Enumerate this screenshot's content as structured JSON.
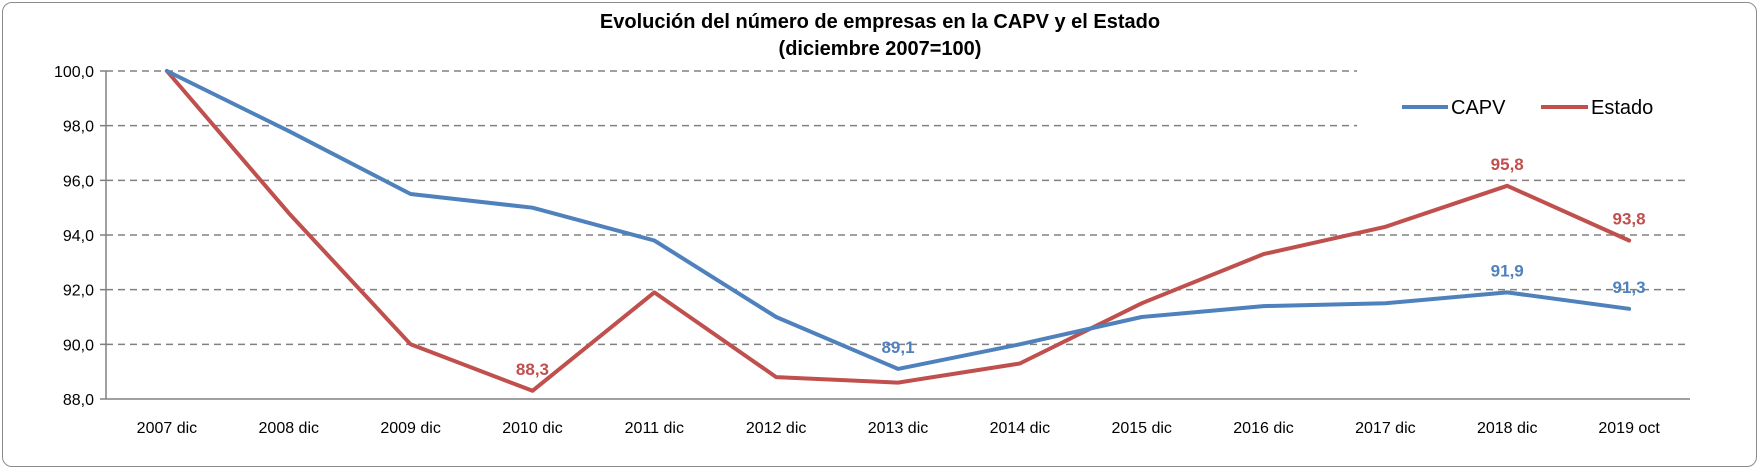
{
  "chart_data": {
    "type": "line",
    "title": "Evolución del número de empresas en la CAPV y el Estado",
    "subtitle": "(diciembre 2007=100)",
    "categories": [
      "2007 dic",
      "2008 dic",
      "2009 dic",
      "2010 dic",
      "2011 dic",
      "2012 dic",
      "2013 dic",
      "2014 dic",
      "2015 dic",
      "2016 dic",
      "2017 dic",
      "2018 dic",
      "2019 oct"
    ],
    "ylim": [
      88,
      100
    ],
    "yticks": [
      "88,0",
      "90,0",
      "92,0",
      "94,0",
      "96,0",
      "98,0",
      "100,0"
    ],
    "grid": "horizontal-dashed",
    "legend_position": "top-right",
    "series": [
      {
        "name": "CAPV",
        "color": "#4f81bd",
        "values": [
          100.0,
          97.8,
          95.5,
          95.0,
          93.8,
          91.0,
          89.1,
          90.0,
          91.0,
          91.4,
          91.5,
          91.9,
          91.3
        ],
        "labels": [
          {
            "index": 6,
            "text": "89,1"
          },
          {
            "index": 11,
            "text": "91,9"
          },
          {
            "index": 12,
            "text": "91,3"
          }
        ]
      },
      {
        "name": "Estado",
        "color": "#c0504d",
        "values": [
          100.0,
          94.8,
          90.0,
          88.3,
          91.9,
          88.8,
          88.6,
          89.3,
          91.5,
          93.3,
          94.3,
          95.8,
          93.8
        ],
        "labels": [
          {
            "index": 3,
            "text": "88,3"
          },
          {
            "index": 11,
            "text": "95,8"
          },
          {
            "index": 12,
            "text": "93,8"
          }
        ]
      }
    ]
  }
}
